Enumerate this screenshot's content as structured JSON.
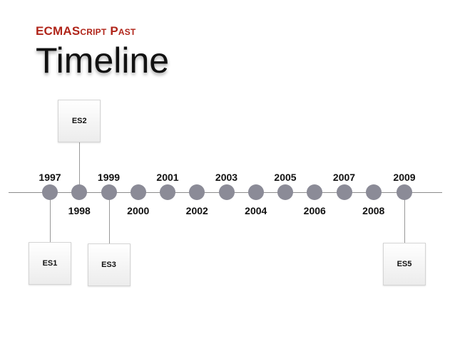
{
  "subtitle": "ECMAScript Past",
  "title": "Timeline",
  "years": [
    {
      "label": "1997",
      "pos": "above"
    },
    {
      "label": "1998",
      "pos": "below"
    },
    {
      "label": "1999",
      "pos": "above"
    },
    {
      "label": "2000",
      "pos": "below"
    },
    {
      "label": "2001",
      "pos": "above"
    },
    {
      "label": "2002",
      "pos": "below"
    },
    {
      "label": "2003",
      "pos": "above"
    },
    {
      "label": "2004",
      "pos": "below"
    },
    {
      "label": "2005",
      "pos": "above"
    },
    {
      "label": "2006",
      "pos": "below"
    },
    {
      "label": "2007",
      "pos": "above"
    },
    {
      "label": "2008",
      "pos": "below"
    },
    {
      "label": "2009",
      "pos": "above"
    }
  ],
  "releases": [
    {
      "label": "ES1",
      "year": "1997",
      "side": "below"
    },
    {
      "label": "ES2",
      "year": "1998",
      "side": "above"
    },
    {
      "label": "ES3",
      "year": "1999",
      "side": "below"
    },
    {
      "label": "ES5",
      "year": "2009",
      "side": "below"
    }
  ],
  "colors": {
    "accent": "#b0251a",
    "dot": "#8b8b97",
    "line": "#8c8c8c"
  }
}
